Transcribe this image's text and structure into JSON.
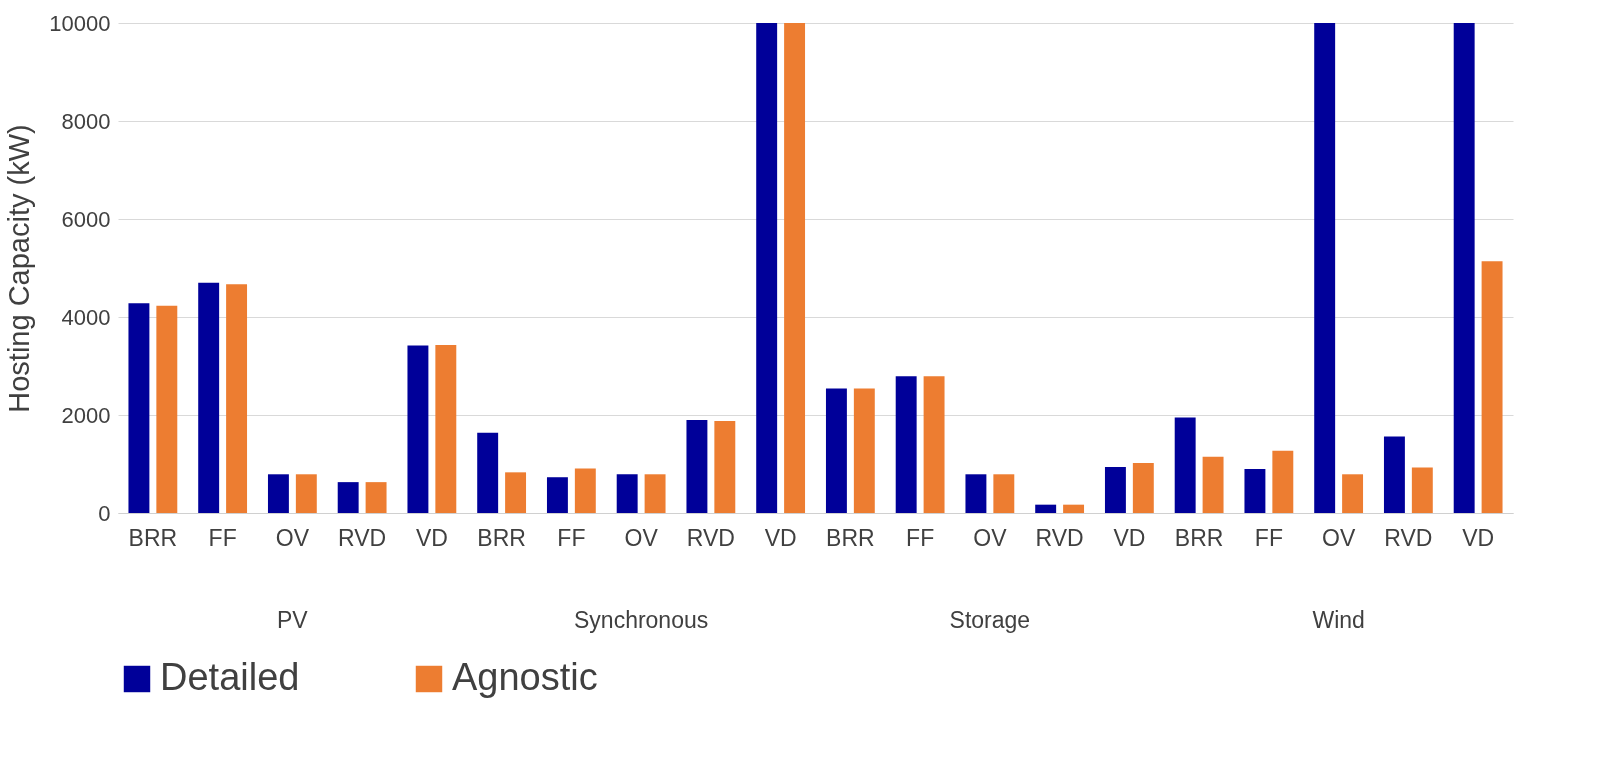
{
  "chart_data": {
    "type": "bar",
    "ylabel": "Hosting Capacity (kW)",
    "categories": [
      "BRR",
      "FF",
      "OV",
      "RVD",
      "VD",
      "BRR",
      "FF",
      "OV",
      "RVD",
      "VD",
      "BRR",
      "FF",
      "OV",
      "RVD",
      "VD",
      "BRR",
      "FF",
      "OV",
      "RVD",
      "VD"
    ],
    "series": [
      {
        "name": "Detailed",
        "color": "#000099",
        "values": [
          4280,
          4700,
          790,
          630,
          3420,
          1640,
          730,
          790,
          1900,
          10000,
          2540,
          2790,
          790,
          170,
          940,
          1950,
          900,
          10000,
          1560,
          10000
        ]
      },
      {
        "name": "Agnostic",
        "color": "#ed7d31",
        "values": [
          4230,
          4670,
          790,
          630,
          3430,
          830,
          910,
          790,
          1880,
          10000,
          2540,
          2790,
          790,
          170,
          1020,
          1150,
          1270,
          790,
          930,
          5140
        ]
      }
    ],
    "annotations": [
      "PV",
      "Synchronous",
      "Storage",
      "Wind"
    ],
    "ylim": [
      0,
      10000
    ],
    "yticks": [
      0,
      2000,
      4000,
      6000,
      8000,
      10000
    ],
    "grid": "y",
    "legend": "bottom"
  }
}
